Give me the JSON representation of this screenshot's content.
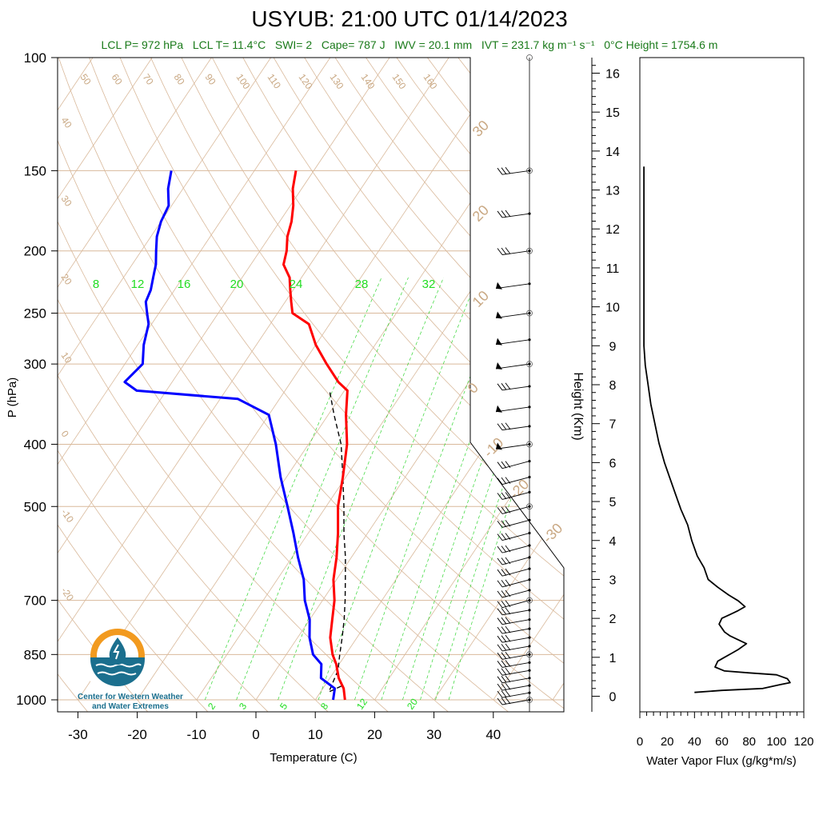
{
  "header": {
    "title": "USYUB: 21:00 UTC 01/14/2023",
    "subtitle_parts": {
      "lcl_p": "LCL P= 972 hPa",
      "lcl_t": "LCL T= 11.4°C",
      "swi": "SWI= 2",
      "cape": "Cape= 787 J",
      "iwv": "IWV = 20.1 mm",
      "ivt": "IVT = 231.7 kg m⁻¹ s⁻¹",
      "freezing": "0°C Height = 1754.6 m"
    }
  },
  "logo": {
    "line1": "Center for Western Weather",
    "line2": "and Water Extremes",
    "colors": {
      "sun": "#f29a1f",
      "water": "#1b6f8e"
    }
  },
  "chart_data": [
    {
      "type": "line",
      "name": "skew-t",
      "xlabel": "Temperature (C)",
      "ylabel": "P (hPa)",
      "xlim": [
        -34,
        52
      ],
      "ylim": [
        1000,
        100
      ],
      "x_ticks": [
        -30,
        -20,
        -10,
        0,
        10,
        20,
        30,
        40
      ],
      "y_ticks": [
        100,
        150,
        200,
        250,
        300,
        400,
        500,
        700,
        850,
        1000
      ],
      "y_scale": "log",
      "isotherm_labels_top": [
        50,
        60,
        70,
        80,
        90,
        100,
        110,
        120,
        130,
        140,
        150,
        160
      ],
      "isotherm_labels_left": [
        40,
        30,
        20,
        10,
        0,
        -10,
        -20
      ],
      "isotherm_labels_right": [
        30,
        20,
        10,
        0,
        -10,
        -20,
        -30
      ],
      "mixing_ratio_labels_top": [
        8,
        12,
        16,
        20,
        24,
        28,
        32
      ],
      "mixing_ratio_labels_bottom": [
        2,
        3,
        5,
        8,
        12,
        20
      ],
      "colors": {
        "temperature": "#ff0000",
        "dewpoint": "#0000ff",
        "parcel": "#000000",
        "grid": "#d9b99b",
        "mixing": "#00cc00"
      },
      "series": [
        {
          "name": "temperature",
          "points": [
            [
              15.0,
              1000
            ],
            [
              13.5,
              960
            ],
            [
              11.5,
              925
            ],
            [
              9.5,
              880
            ],
            [
              7.8,
              850
            ],
            [
              5.5,
              800
            ],
            [
              3.8,
              750
            ],
            [
              2.0,
              700
            ],
            [
              -0.5,
              650
            ],
            [
              -2.5,
              600
            ],
            [
              -5.0,
              550
            ],
            [
              -8.0,
              500
            ],
            [
              -10.5,
              450
            ],
            [
              -13.5,
              400
            ],
            [
              -17.0,
              360
            ],
            [
              -19.5,
              330
            ],
            [
              -22.0,
              320
            ],
            [
              -26.0,
              300
            ],
            [
              -30.0,
              280
            ],
            [
              -33.5,
              260
            ],
            [
              -37.5,
              250
            ],
            [
              -39.0,
              240
            ],
            [
              -40.5,
              230
            ],
            [
              -42.0,
              220
            ],
            [
              -44.5,
              210
            ],
            [
              -45.5,
              200
            ],
            [
              -47.0,
              190
            ],
            [
              -48.0,
              180
            ],
            [
              -49.5,
              170
            ],
            [
              -51.5,
              160
            ],
            [
              -53.0,
              150
            ]
          ]
        },
        {
          "name": "dewpoint",
          "points": [
            [
              13.0,
              1000
            ],
            [
              12.0,
              960
            ],
            [
              8.5,
              925
            ],
            [
              7.0,
              880
            ],
            [
              4.5,
              850
            ],
            [
              2.0,
              800
            ],
            [
              0.0,
              750
            ],
            [
              -3.0,
              700
            ],
            [
              -5.5,
              650
            ],
            [
              -9.0,
              600
            ],
            [
              -12.5,
              550
            ],
            [
              -16.5,
              500
            ],
            [
              -21.0,
              450
            ],
            [
              -25.5,
              400
            ],
            [
              -30.0,
              360
            ],
            [
              -37.0,
              340
            ],
            [
              -55.0,
              330
            ],
            [
              -58.0,
              320
            ],
            [
              -57.0,
              300
            ],
            [
              -59.0,
              280
            ],
            [
              -60.5,
              260
            ],
            [
              -62.0,
              250
            ],
            [
              -63.5,
              240
            ],
            [
              -64.0,
              230
            ],
            [
              -65.0,
              220
            ],
            [
              -66.0,
              210
            ],
            [
              -67.5,
              200
            ],
            [
              -69.0,
              190
            ],
            [
              -70.0,
              180
            ],
            [
              -70.5,
              170
            ],
            [
              -72.5,
              160
            ],
            [
              -74.0,
              150
            ]
          ]
        },
        {
          "name": "parcel",
          "points": [
            [
              15.0,
              1000
            ],
            [
              13.0,
              950
            ],
            [
              11.4,
              972
            ],
            [
              10.5,
              900
            ],
            [
              9.0,
              850
            ],
            [
              7.5,
              800
            ],
            [
              5.8,
              750
            ],
            [
              3.8,
              700
            ],
            [
              1.5,
              650
            ],
            [
              -1.0,
              600
            ],
            [
              -4.0,
              550
            ],
            [
              -7.0,
              500
            ],
            [
              -10.5,
              450
            ],
            [
              -14.5,
              400
            ],
            [
              -19.0,
              360
            ],
            [
              -22.5,
              330
            ]
          ]
        }
      ],
      "wind_barbs_pressures": [
        1000,
        975,
        950,
        925,
        900,
        875,
        850,
        825,
        800,
        775,
        750,
        725,
        700,
        675,
        650,
        625,
        600,
        575,
        550,
        525,
        500,
        475,
        450,
        425,
        400,
        375,
        350,
        325,
        300,
        275,
        250,
        225,
        200,
        175,
        150
      ],
      "wind_barb_flag_levels": [
        400,
        350,
        300,
        275,
        250,
        225
      ]
    },
    {
      "type": "line",
      "name": "water-vapor-flux",
      "xlabel": "Water Vapor Flux (g/kg*m/s)",
      "ylabel": "Height (Km)",
      "xlim": [
        0,
        120
      ],
      "ylim": [
        0,
        16.4
      ],
      "x_ticks": [
        0,
        20,
        40,
        60,
        80,
        100,
        120
      ],
      "y_ticks": [
        0,
        1,
        2,
        3,
        4,
        5,
        6,
        7,
        8,
        9,
        10,
        11,
        12,
        13,
        14,
        15,
        16
      ],
      "points": [
        [
          40,
          0.1
        ],
        [
          60,
          0.15
        ],
        [
          90,
          0.2
        ],
        [
          103,
          0.3
        ],
        [
          110,
          0.35
        ],
        [
          108,
          0.45
        ],
        [
          100,
          0.55
        ],
        [
          80,
          0.6
        ],
        [
          62,
          0.65
        ],
        [
          55,
          0.75
        ],
        [
          57,
          0.9
        ],
        [
          62,
          1.0
        ],
        [
          67,
          1.1
        ],
        [
          72,
          1.2
        ],
        [
          78,
          1.35
        ],
        [
          72,
          1.45
        ],
        [
          66,
          1.55
        ],
        [
          62,
          1.65
        ],
        [
          60,
          1.75
        ],
        [
          58,
          1.85
        ],
        [
          60,
          2.0
        ],
        [
          66,
          2.1
        ],
        [
          72,
          2.2
        ],
        [
          77,
          2.3
        ],
        [
          72,
          2.45
        ],
        [
          65,
          2.6
        ],
        [
          57,
          2.8
        ],
        [
          50,
          3.0
        ],
        [
          47,
          3.3
        ],
        [
          42,
          3.6
        ],
        [
          38,
          4.0
        ],
        [
          35,
          4.4
        ],
        [
          30,
          4.8
        ],
        [
          26,
          5.2
        ],
        [
          22,
          5.6
        ],
        [
          18,
          6.0
        ],
        [
          14,
          6.5
        ],
        [
          11,
          7.0
        ],
        [
          8,
          7.5
        ],
        [
          6,
          8.0
        ],
        [
          4,
          8.5
        ],
        [
          3,
          9.0
        ],
        [
          3,
          10.0
        ],
        [
          3,
          11.0
        ],
        [
          3,
          12.0
        ],
        [
          3,
          13.0
        ],
        [
          3,
          13.6
        ]
      ]
    }
  ]
}
